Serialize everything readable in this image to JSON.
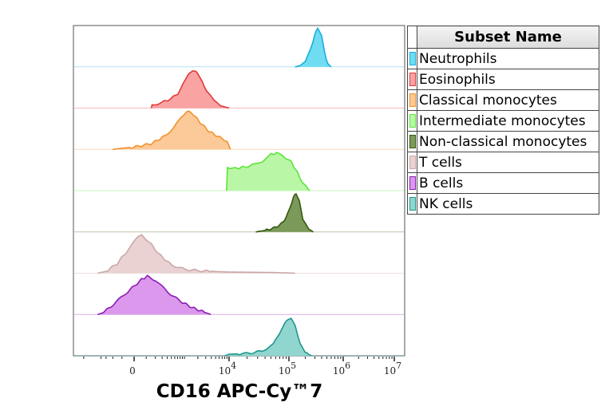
{
  "chart_data": {
    "type": "histogram-overlay",
    "xlabel": "CD16 APC-Cy™7",
    "x_scale": "biexponential",
    "xticks": [
      {
        "value": 0,
        "label": "0"
      },
      {
        "value": 10000,
        "base": "10",
        "exp": "4"
      },
      {
        "value": 100000,
        "base": "10",
        "exp": "5"
      },
      {
        "value": 1000000,
        "base": "10",
        "exp": "6"
      },
      {
        "value": 10000000,
        "base": "10",
        "exp": "7"
      }
    ],
    "legend": {
      "title": "Subset Name",
      "placement": "right"
    },
    "series": [
      {
        "name": "Neutrophils",
        "fill": "#6fdcf2",
        "stroke": "#1aaedc",
        "points": [
          [
            130000,
            0
          ],
          [
            160000,
            0.03
          ],
          [
            200000,
            0.12
          ],
          [
            250000,
            0.45
          ],
          [
            300000,
            0.85
          ],
          [
            340000,
            1
          ],
          [
            400000,
            0.8
          ],
          [
            460000,
            0.35
          ],
          [
            520000,
            0.08
          ],
          [
            600000,
            0
          ]
        ]
      },
      {
        "name": "Eosinophils",
        "fill": "#f9a3a3",
        "stroke": "#e23a3a",
        "points": [
          [
            150,
            0
          ],
          [
            160,
            0.08
          ],
          [
            300,
            0.15
          ],
          [
            500,
            0.25
          ],
          [
            700,
            0.38
          ],
          [
            900,
            0.6
          ],
          [
            1200,
            0.85
          ],
          [
            1500,
            1
          ],
          [
            1900,
            0.92
          ],
          [
            2500,
            0.7
          ],
          [
            3200,
            0.45
          ],
          [
            4500,
            0.2
          ],
          [
            6500,
            0.06
          ],
          [
            10000,
            0
          ]
        ]
      },
      {
        "name": "Classical monocytes",
        "fill": "#fcc998",
        "stroke": "#f0922e",
        "points": [
          [
            -200,
            0
          ],
          [
            -100,
            0.03
          ],
          [
            0,
            0.06
          ],
          [
            150,
            0.15
          ],
          [
            350,
            0.35
          ],
          [
            600,
            0.6
          ],
          [
            850,
            0.85
          ],
          [
            1100,
            1
          ],
          [
            1500,
            0.95
          ],
          [
            2200,
            0.72
          ],
          [
            3500,
            0.48
          ],
          [
            6000,
            0.32
          ],
          [
            9000,
            0.22
          ],
          [
            10500,
            0
          ]
        ]
      },
      {
        "name": "Intermediate monocytes",
        "fill": "#b9f7a6",
        "stroke": "#5ee23a",
        "points": [
          [
            8800,
            0
          ],
          [
            9200,
            0.62
          ],
          [
            12000,
            0.58
          ],
          [
            18000,
            0.62
          ],
          [
            26000,
            0.68
          ],
          [
            36000,
            0.78
          ],
          [
            50000,
            0.95
          ],
          [
            62000,
            0.98
          ],
          [
            80000,
            0.92
          ],
          [
            110000,
            0.75
          ],
          [
            140000,
            0.5
          ],
          [
            180000,
            0.2
          ],
          [
            240000,
            0
          ]
        ]
      },
      {
        "name": "Non-classical monocytes",
        "fill": "#7b9a5a",
        "stroke": "#35560e",
        "points": [
          [
            28000,
            0
          ],
          [
            40000,
            0.04
          ],
          [
            60000,
            0.12
          ],
          [
            80000,
            0.25
          ],
          [
            100000,
            0.55
          ],
          [
            120000,
            0.9
          ],
          [
            135000,
            1
          ],
          [
            155000,
            0.85
          ],
          [
            180000,
            0.35
          ],
          [
            220000,
            0.1
          ],
          [
            280000,
            0
          ]
        ]
      },
      {
        "name": "T cells",
        "fill": "#ead2d2",
        "stroke": "#c9a8a8",
        "points": [
          [
            -480,
            0
          ],
          [
            -300,
            0.05
          ],
          [
            -150,
            0.25
          ],
          [
            -50,
            0.6
          ],
          [
            30,
            0.95
          ],
          [
            60,
            1
          ],
          [
            120,
            0.85
          ],
          [
            250,
            0.5
          ],
          [
            500,
            0.22
          ],
          [
            1000,
            0.1
          ],
          [
            2500,
            0.06
          ],
          [
            10000,
            0.03
          ],
          [
            50000,
            0.02
          ],
          [
            130000,
            0
          ]
        ]
      },
      {
        "name": "B cells",
        "fill": "#dc98ec",
        "stroke": "#8b1eb2",
        "points": [
          [
            -480,
            0
          ],
          [
            -350,
            0.05
          ],
          [
            -200,
            0.25
          ],
          [
            -50,
            0.6
          ],
          [
            60,
            0.92
          ],
          [
            110,
            1
          ],
          [
            200,
            0.9
          ],
          [
            400,
            0.6
          ],
          [
            800,
            0.35
          ],
          [
            1500,
            0.18
          ],
          [
            2800,
            0.06
          ],
          [
            3900,
            0
          ]
        ]
      },
      {
        "name": "NK cells",
        "fill": "#90d6cf",
        "stroke": "#1f968e",
        "points": [
          [
            8000,
            0
          ],
          [
            10000,
            0.04
          ],
          [
            20000,
            0.06
          ],
          [
            35000,
            0.12
          ],
          [
            55000,
            0.3
          ],
          [
            75000,
            0.7
          ],
          [
            95000,
            0.95
          ],
          [
            110000,
            1
          ],
          [
            130000,
            0.8
          ],
          [
            160000,
            0.35
          ],
          [
            200000,
            0.08
          ],
          [
            260000,
            0
          ]
        ]
      }
    ]
  }
}
